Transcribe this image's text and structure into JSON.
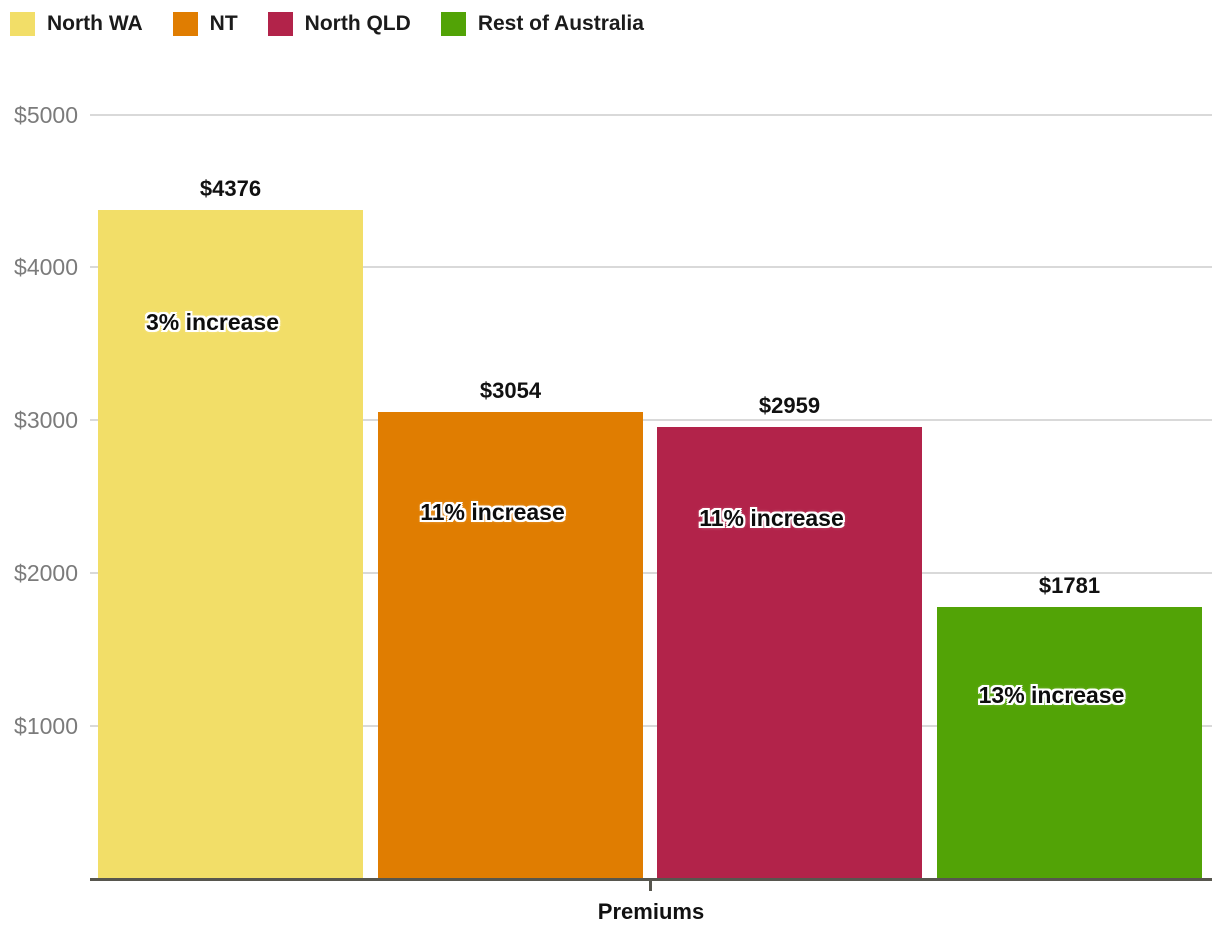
{
  "chart_data": {
    "type": "bar",
    "title": "",
    "xlabel": "Premiums",
    "ylabel": "",
    "ylim": [
      0,
      5000
    ],
    "yticks": [
      5000,
      4000,
      3000,
      2000,
      1000
    ],
    "ytick_labels": [
      "$5000",
      "$4000",
      "$3000",
      "$2000",
      "$1000"
    ],
    "grid": true,
    "legend_position": "top-left",
    "categories": [
      "North WA",
      "NT",
      "North QLD",
      "Rest of Australia"
    ],
    "series": [
      {
        "name": "Premiums",
        "points": [
          {
            "category": "North WA",
            "value": 4376,
            "value_label": "$4376",
            "annotation": "3% increase",
            "color": "#F2DE68"
          },
          {
            "category": "NT",
            "value": 3054,
            "value_label": "$3054",
            "annotation": "11% increase",
            "color": "#E07D01"
          },
          {
            "category": "North QLD",
            "value": 2959,
            "value_label": "$2959",
            "annotation": "11% increase",
            "color": "#B2234A"
          },
          {
            "category": "Rest of Australia",
            "value": 1781,
            "value_label": "$1781",
            "annotation": "13% increase",
            "color": "#52A306"
          }
        ]
      }
    ]
  },
  "colors": {
    "gridline": "#D9D9D9",
    "axis": "#57564E",
    "ytick_text": "#7B7B7B",
    "label_text": "#111111",
    "legend_text": "#1B1B1B"
  }
}
